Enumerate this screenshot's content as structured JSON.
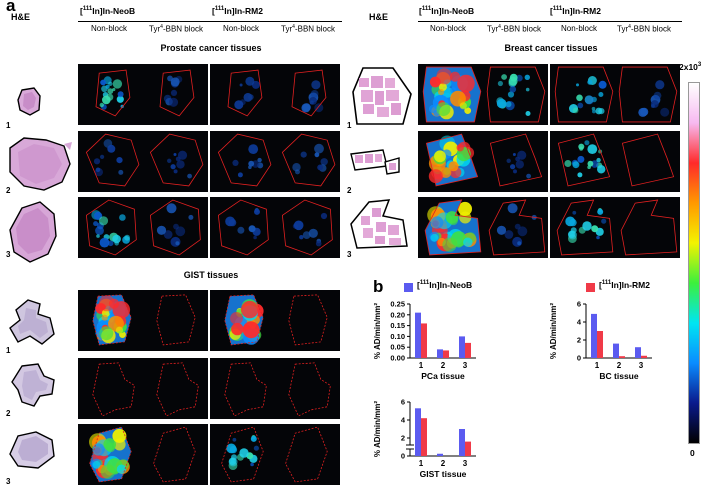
{
  "figure": {
    "panel_a": "a",
    "panel_b": "b",
    "he_label": "H&E",
    "row_labels": [
      "1",
      "2",
      "3"
    ],
    "tracer_neob_pre": "[",
    "tracer_neob_iso": "111",
    "tracer_neob_post": "In]In-NeoB",
    "tracer_rm2_pre": "[",
    "tracer_rm2_iso": "111",
    "tracer_rm2_post": "In]In-RM2",
    "cond_nonblock": "Non-block",
    "cond_block_pre": "Tyr",
    "cond_block_sup": "4",
    "cond_block_post": "-BBN block",
    "prostate_title": "Prostate cancer tissues",
    "breast_title": "Breast cancer tissues",
    "gist_title": "GIST tissues",
    "colorbar_max_pre": "2x10",
    "colorbar_max_sup": "3",
    "colorbar_min": "0",
    "colorbar_colors": [
      "#ffffff",
      "#f6b9f0",
      "#ff2a2a",
      "#ff9900",
      "#f3f300",
      "#3cf03c",
      "#00e5f2",
      "#0a8cff",
      "#0a1a8c",
      "#000000"
    ]
  },
  "legend": {
    "neob_pre": "[",
    "neob_iso": "111",
    "neob_post": "In]In-NeoB",
    "rm2_pre": "[",
    "rm2_iso": "111",
    "rm2_post": "In]In-RM2",
    "neob_color": "#5b5bf0",
    "rm2_color": "#f03a48"
  },
  "chart_data": [
    {
      "type": "bar",
      "categories": [
        "1",
        "2",
        "3"
      ],
      "series": [
        {
          "values": [
            0.21,
            0.04,
            0.1
          ]
        },
        {
          "values": [
            0.16,
            0.035,
            0.07
          ]
        }
      ],
      "xlabel": "PCa tissue",
      "ylabel": "% AD/min/mm²",
      "ylim": [
        0,
        0.25
      ],
      "yticks": [
        "0.00",
        "0.05",
        "0.10",
        "0.15",
        "0.20",
        "0.25"
      ],
      "ytick_values": [
        0,
        0.05,
        0.1,
        0.15,
        0.2,
        0.25
      ]
    },
    {
      "type": "bar",
      "categories": [
        "1",
        "2",
        "3"
      ],
      "series": [
        {
          "values": [
            4.9,
            1.6,
            1.2
          ]
        },
        {
          "values": [
            3.0,
            0.2,
            0.25
          ]
        }
      ],
      "xlabel": "BC tissue",
      "ylabel": "% AD/min/mm²",
      "ylim": [
        0,
        6
      ],
      "yticks": [
        "0",
        "2",
        "4",
        "6"
      ],
      "ytick_values": [
        0,
        2,
        4,
        6
      ]
    },
    {
      "type": "bar",
      "categories": [
        "1",
        "2",
        "3"
      ],
      "series": [
        {
          "values": [
            5.3,
            0.25,
            3.0
          ]
        },
        {
          "values": [
            4.2,
            0,
            1.6
          ]
        }
      ],
      "xlabel": "GIST tissue",
      "ylabel": "% AD/min/mm²",
      "ylim": [
        0,
        6
      ],
      "axis_break": true,
      "yticks": [
        "0",
        "2",
        "4",
        "6"
      ],
      "ytick_values": [
        0,
        2,
        4,
        6
      ]
    }
  ]
}
